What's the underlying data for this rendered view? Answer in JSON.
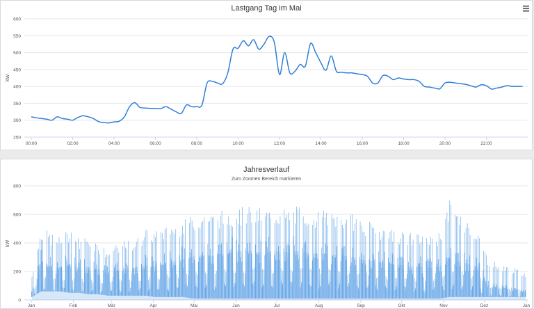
{
  "chart_data": [
    {
      "type": "line",
      "title": "Lastgang Tag im Mai",
      "xlabel": "",
      "ylabel": "kW",
      "ylim": [
        250,
        600
      ],
      "yticks": [
        "250",
        "300",
        "350",
        "400",
        "450",
        "500",
        "550",
        "600"
      ],
      "xticks": [
        "00:00",
        "02:00",
        "04:00",
        "06:00",
        "08:00",
        "10:00",
        "12:00",
        "14:00",
        "16:00",
        "18:00",
        "20:00",
        "22:00"
      ],
      "grid": true,
      "color": "#2f7ed8",
      "series": [
        {
          "x": [
            0,
            0.25,
            0.5,
            0.75,
            1,
            1.25,
            1.5,
            1.75,
            2,
            2.25,
            2.5,
            2.75,
            3,
            3.25,
            3.5,
            3.75,
            4,
            4.25,
            4.5,
            4.75,
            5,
            5.25,
            5.5,
            5.75,
            6,
            6.25,
            6.5,
            6.75,
            7,
            7.25,
            7.5,
            7.75,
            8,
            8.25,
            8.5,
            8.75,
            9,
            9.25,
            9.5,
            9.75,
            10,
            10.25,
            10.5,
            10.75,
            11,
            11.25,
            11.5,
            11.75,
            12,
            12.25,
            12.5,
            12.75,
            13,
            13.25,
            13.5,
            13.75,
            14,
            14.25,
            14.5,
            14.75,
            15,
            15.25,
            15.5,
            15.75,
            16,
            16.25,
            16.5,
            16.75,
            17,
            17.25,
            17.5,
            17.75,
            18,
            18.25,
            18.5,
            18.75,
            19,
            19.25,
            19.5,
            19.75,
            20,
            20.25,
            20.5,
            20.75,
            21,
            21.25,
            21.5,
            21.75,
            22,
            22.25,
            22.5,
            22.75,
            23,
            23.25,
            23.5,
            23.75
          ],
          "y": [
            310,
            307,
            305,
            303,
            300,
            310,
            305,
            303,
            300,
            308,
            313,
            310,
            305,
            296,
            293,
            292,
            295,
            297,
            310,
            340,
            352,
            338,
            336,
            335,
            335,
            334,
            340,
            333,
            325,
            320,
            345,
            340,
            340,
            345,
            410,
            415,
            410,
            408,
            440,
            510,
            513,
            535,
            520,
            538,
            510,
            525,
            548,
            530,
            435,
            500,
            440,
            445,
            465,
            460,
            527,
            500,
            470,
            448,
            490,
            445,
            442,
            440,
            440,
            437,
            435,
            430,
            410,
            410,
            432,
            430,
            420,
            425,
            422,
            420,
            420,
            415,
            400,
            398,
            395,
            393,
            410,
            412,
            410,
            408,
            406,
            402,
            398,
            405,
            402,
            392,
            395,
            398,
            402,
            400,
            400,
            400
          ]
        }
      ]
    },
    {
      "type": "area",
      "title": "Jahresverlauf",
      "subtitle": "Zum Zoomen Bereich markieren",
      "xlabel": "",
      "ylabel": "kW",
      "ylim": [
        0,
        800
      ],
      "yticks": [
        "0",
        "200",
        "400",
        "600",
        "800"
      ],
      "xticks": [
        "Jan",
        "Feb",
        "Mär",
        "Apr",
        "Mai",
        "Jun",
        "Jul",
        "Aug",
        "Sep",
        "Okt",
        "Nov",
        "Dez",
        "Jan"
      ],
      "grid": true,
      "color": "#2f7ed8",
      "series": [
        {
          "x_days": [
            1,
            8,
            15,
            22,
            29,
            36,
            43,
            50,
            57,
            64,
            71,
            78,
            85,
            92,
            99,
            106,
            113,
            120,
            127,
            134,
            141,
            148,
            155,
            162,
            169,
            176,
            183,
            190,
            197,
            204,
            211,
            218,
            225,
            232,
            239,
            246,
            253,
            260,
            267,
            274,
            281,
            288,
            295,
            302,
            309,
            316,
            323,
            330,
            337,
            344,
            351,
            358,
            365
          ],
          "daily_peak_kw": [
            180,
            520,
            470,
            440,
            510,
            430,
            460,
            400,
            350,
            410,
            420,
            430,
            500,
            480,
            520,
            540,
            560,
            600,
            620,
            610,
            630,
            640,
            650,
            660,
            650,
            640,
            650,
            640,
            660,
            650,
            630,
            640,
            620,
            610,
            600,
            560,
            540,
            520,
            500,
            480,
            470,
            460,
            450,
            480,
            700,
            600,
            550,
            500,
            300,
            260,
            240,
            220,
            200
          ],
          "daily_base_kw": [
            20,
            60,
            60,
            60,
            50,
            50,
            40,
            40,
            30,
            30,
            30,
            30,
            30,
            20,
            20,
            20,
            20,
            10,
            10,
            10,
            10,
            10,
            10,
            10,
            10,
            10,
            10,
            10,
            10,
            10,
            10,
            10,
            10,
            10,
            10,
            10,
            10,
            10,
            10,
            10,
            10,
            10,
            10,
            10,
            20,
            20,
            20,
            20,
            20,
            20,
            20,
            20,
            20
          ],
          "typical_level_kw": [
            60,
            300,
            260,
            250,
            280,
            250,
            260,
            240,
            200,
            230,
            240,
            250,
            270,
            260,
            280,
            300,
            320,
            340,
            350,
            340,
            360,
            370,
            380,
            380,
            370,
            370,
            380,
            370,
            380,
            370,
            360,
            360,
            350,
            340,
            330,
            310,
            300,
            290,
            280,
            270,
            260,
            260,
            250,
            260,
            320,
            300,
            280,
            260,
            120,
            100,
            90,
            80,
            60
          ]
        }
      ]
    }
  ]
}
